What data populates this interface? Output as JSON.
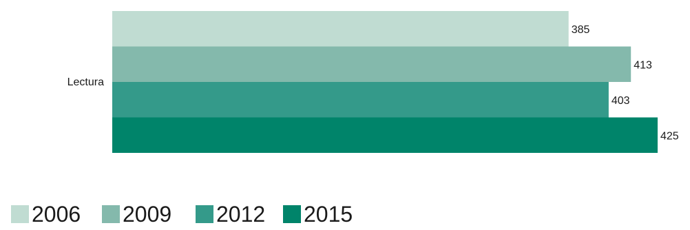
{
  "chart_data": {
    "type": "bar",
    "orientation": "horizontal",
    "categories": [
      "Lectura"
    ],
    "series": [
      {
        "name": "2006",
        "values": [
          385
        ],
        "color": "#c0dcd2"
      },
      {
        "name": "2009",
        "values": [
          413
        ],
        "color": "#84b9ac"
      },
      {
        "name": "2012",
        "values": [
          403
        ],
        "color": "#349a8a"
      },
      {
        "name": "2015",
        "values": [
          425
        ],
        "color": "#00846a"
      }
    ],
    "title": "",
    "xlabel": "",
    "ylabel": "",
    "xlim": [
      180,
      425
    ],
    "grid": false,
    "legend_position": "bottom-left"
  }
}
